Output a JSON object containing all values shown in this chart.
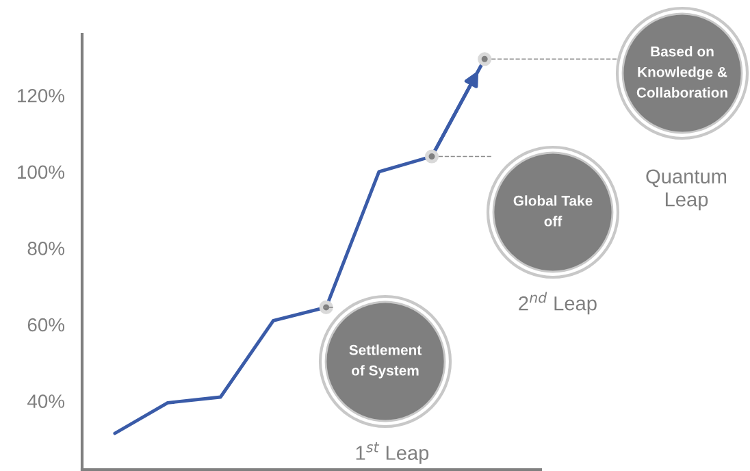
{
  "chart_data": {
    "type": "line",
    "categories": [
      null,
      null,
      null,
      null,
      null,
      null,
      null,
      null
    ],
    "series": [
      {
        "color": "#3a5ba8",
        "values": [
          31.5,
          39.5,
          41,
          61,
          64.5,
          100,
          104,
          129.5
        ]
      },
      {
        "type": "scatter",
        "color": "#7f7f7f",
        "values": [
          null,
          null,
          null,
          null,
          64.5,
          null,
          104,
          129.5
        ]
      }
    ],
    "ylim": [
      22,
      136
    ],
    "yticks": [
      {
        "value": 40,
        "label": "40%"
      },
      {
        "value": 60,
        "label": "60%"
      },
      {
        "value": 80,
        "label": "80%"
      },
      {
        "value": 100,
        "label": "100%"
      },
      {
        "value": 120,
        "label": "120%"
      }
    ],
    "tick_labels": "y",
    "grid": false,
    "annotations": [
      "Settlement of System",
      "1$^{st}$ Leap",
      "Global Take off",
      "2$^{nd}$ Leap",
      "Based on Knowledge & Collaboration",
      "Quantum Leap"
    ]
  }
}
